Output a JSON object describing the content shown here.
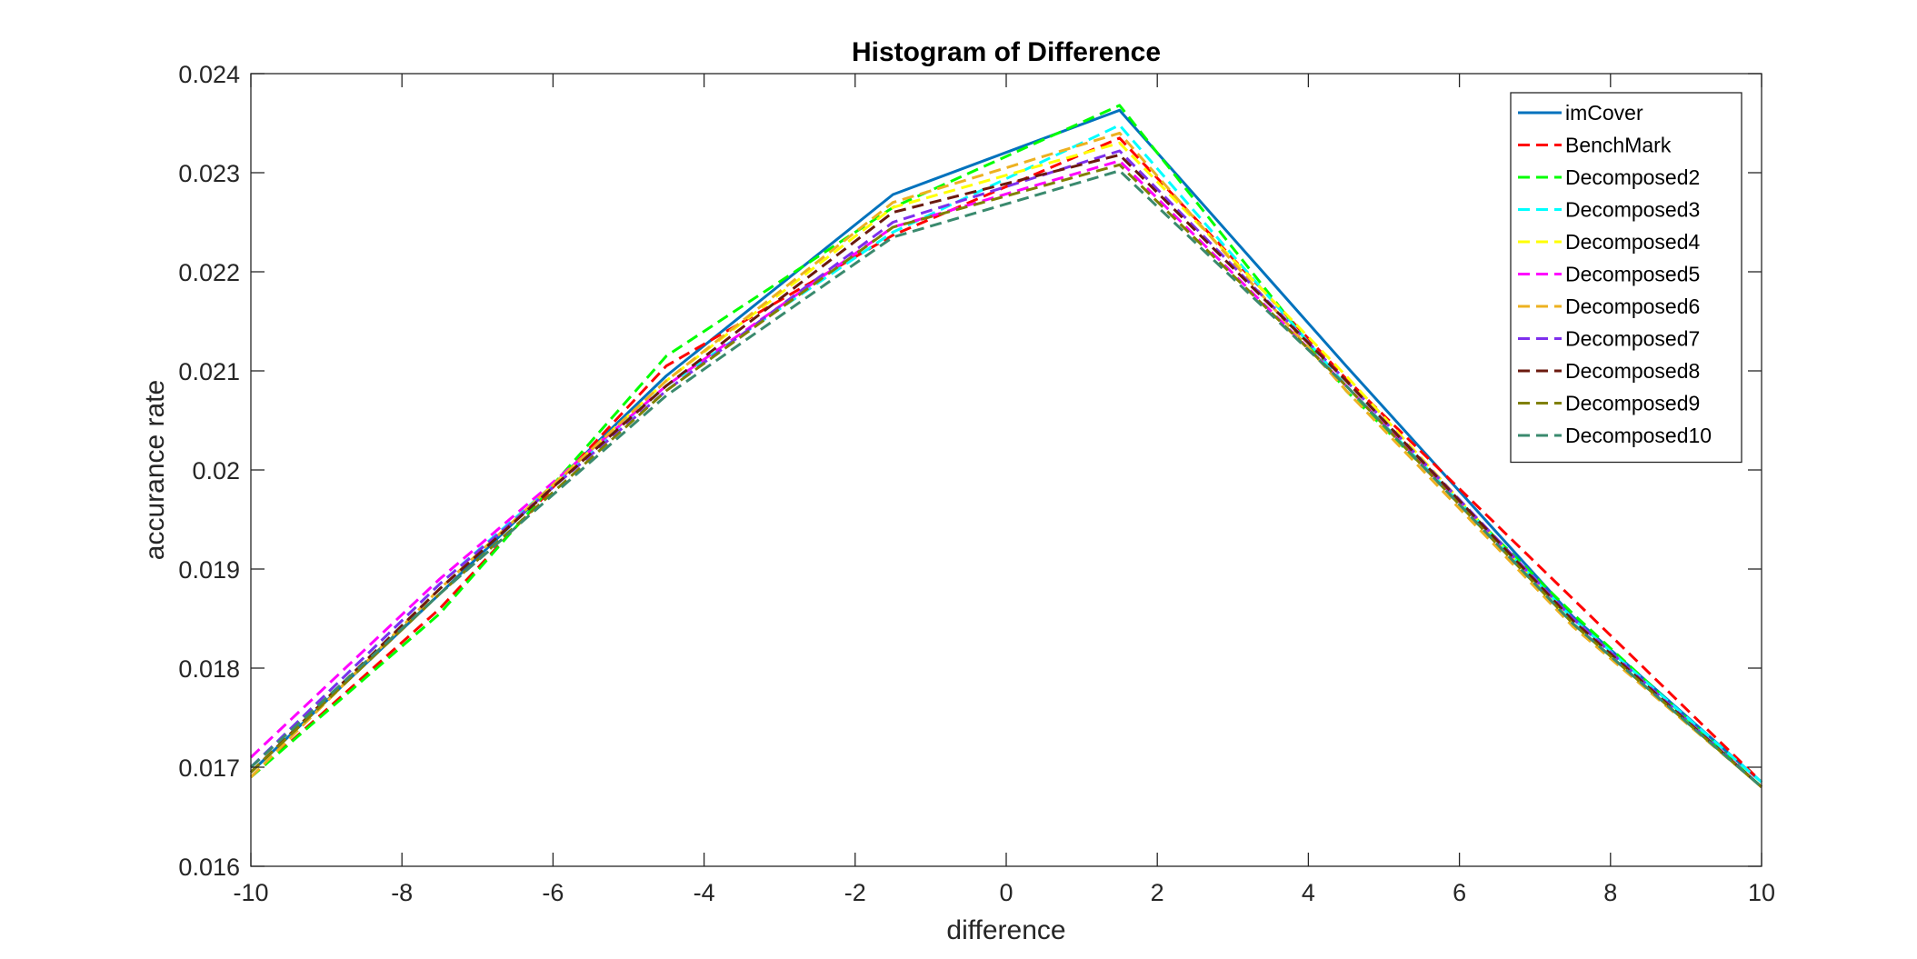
{
  "chart_data": {
    "type": "line",
    "title": "Histogram of Difference",
    "xlabel": "difference",
    "ylabel": "accurance rate",
    "xlim": [
      -10,
      10
    ],
    "ylim": [
      0.016,
      0.024
    ],
    "xticks": [
      -10,
      -8,
      -6,
      -4,
      -2,
      0,
      2,
      4,
      6,
      8,
      10
    ],
    "xtick_labels": [
      "-10",
      "-8",
      "-6",
      "-4",
      "-2",
      "0",
      "2",
      "4",
      "6",
      "8",
      "10"
    ],
    "yticks": [
      0.016,
      0.017,
      0.018,
      0.019,
      0.02,
      0.021,
      0.022,
      0.023,
      0.024
    ],
    "ytick_labels": [
      "0.016",
      "0.017",
      "0.018",
      "0.019",
      "0.02",
      "0.021",
      "0.022",
      "0.023",
      "0.024"
    ],
    "grid": false,
    "legend_position": "top-right",
    "x": [
      -10,
      -7.5,
      -4.5,
      -1.5,
      1.5,
      4.5,
      7.5,
      10
    ],
    "series": [
      {
        "name": "imCover",
        "color": "#0072BD",
        "dash": "solid",
        "values": [
          0.01695,
          0.01875,
          0.02095,
          0.02278,
          0.02363,
          0.02105,
          0.01852,
          0.01685
        ]
      },
      {
        "name": "BenchMark",
        "color": "#FF0000",
        "dash": "dashed",
        "values": [
          0.0169,
          0.0186,
          0.02105,
          0.02237,
          0.02335,
          0.02092,
          0.0187,
          0.01685
        ]
      },
      {
        "name": "Decomposed2",
        "color": "#00FF00",
        "dash": "dashed",
        "values": [
          0.0169,
          0.01855,
          0.02115,
          0.02265,
          0.02368,
          0.0208,
          0.01855,
          0.0168
        ]
      },
      {
        "name": "Decomposed3",
        "color": "#00FFFF",
        "dash": "dashed",
        "values": [
          0.017,
          0.01885,
          0.02085,
          0.0224,
          0.02348,
          0.02085,
          0.0185,
          0.01685
        ]
      },
      {
        "name": "Decomposed4",
        "color": "#FFFF00",
        "dash": "dashed",
        "values": [
          0.01695,
          0.0188,
          0.0209,
          0.02265,
          0.0233,
          0.02095,
          0.01845,
          0.0168
        ]
      },
      {
        "name": "Decomposed5",
        "color": "#FF00FF",
        "dash": "dashed",
        "values": [
          0.0171,
          0.0189,
          0.02085,
          0.02245,
          0.02312,
          0.02085,
          0.0185,
          0.0168
        ]
      },
      {
        "name": "Decomposed6",
        "color": "#EDB120",
        "dash": "dashed",
        "values": [
          0.0169,
          0.0188,
          0.0209,
          0.0227,
          0.0234,
          0.0208,
          0.01842,
          0.0168
        ]
      },
      {
        "name": "Decomposed7",
        "color": "#7E2FED",
        "dash": "dashed",
        "values": [
          0.017,
          0.01885,
          0.0208,
          0.0225,
          0.02322,
          0.0209,
          0.0185,
          0.0168
        ]
      },
      {
        "name": "Decomposed8",
        "color": "#6B1A0F",
        "dash": "dashed",
        "values": [
          0.01695,
          0.0188,
          0.02085,
          0.0226,
          0.02318,
          0.0209,
          0.01848,
          0.0168
        ]
      },
      {
        "name": "Decomposed9",
        "color": "#808000",
        "dash": "dashed",
        "values": [
          0.01695,
          0.01875,
          0.0208,
          0.02245,
          0.02308,
          0.02085,
          0.01845,
          0.0168
        ]
      },
      {
        "name": "Decomposed10",
        "color": "#3A8A6E",
        "dash": "dashed",
        "values": [
          0.017,
          0.01875,
          0.02075,
          0.02235,
          0.02302,
          0.02085,
          0.01845,
          0.0168
        ]
      }
    ]
  }
}
